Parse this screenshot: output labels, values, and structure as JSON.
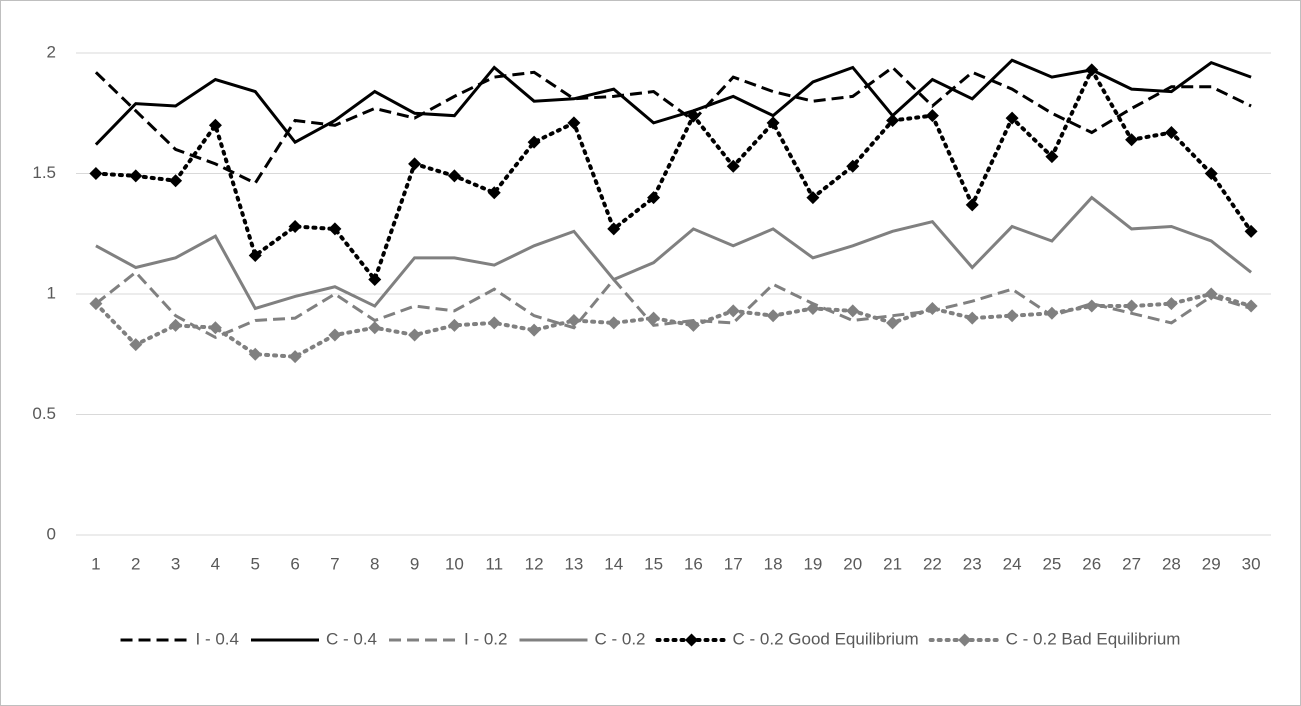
{
  "chart_data": {
    "type": "line",
    "categories": [
      "1",
      "2",
      "3",
      "4",
      "5",
      "6",
      "7",
      "8",
      "9",
      "10",
      "11",
      "12",
      "13",
      "14",
      "15",
      "16",
      "17",
      "18",
      "19",
      "20",
      "21",
      "22",
      "23",
      "24",
      "25",
      "26",
      "27",
      "28",
      "29",
      "30"
    ],
    "ylim": [
      0,
      2
    ],
    "yticks": [
      0,
      0.5,
      1,
      1.5,
      2
    ],
    "grid": true,
    "legend": "bottom",
    "series": [
      {
        "name": "I - 0.4",
        "color": "#000000",
        "dash": "dashed",
        "marker": "none",
        "values": [
          1.92,
          1.76,
          1.6,
          1.54,
          1.46,
          1.72,
          1.7,
          1.77,
          1.73,
          1.82,
          1.9,
          1.92,
          1.81,
          1.82,
          1.84,
          1.72,
          1.9,
          1.84,
          1.8,
          1.82,
          1.94,
          1.78,
          1.92,
          1.85,
          1.75,
          1.67,
          1.77,
          1.86,
          1.86,
          1.78
        ]
      },
      {
        "name": "C - 0.4",
        "color": "#000000",
        "dash": "solid",
        "marker": "none",
        "values": [
          1.62,
          1.79,
          1.78,
          1.89,
          1.84,
          1.63,
          1.72,
          1.84,
          1.75,
          1.74,
          1.94,
          1.8,
          1.81,
          1.85,
          1.71,
          1.76,
          1.82,
          1.74,
          1.88,
          1.94,
          1.74,
          1.89,
          1.81,
          1.97,
          1.9,
          1.93,
          1.85,
          1.84,
          1.96,
          1.9
        ]
      },
      {
        "name": "I - 0.2",
        "color": "#808080",
        "dash": "dashed",
        "marker": "none",
        "values": [
          0.96,
          1.09,
          0.91,
          0.82,
          0.89,
          0.9,
          1.0,
          0.89,
          0.95,
          0.93,
          1.02,
          0.91,
          0.86,
          1.06,
          0.87,
          0.89,
          0.88,
          1.04,
          0.96,
          0.89,
          0.91,
          0.93,
          0.97,
          1.02,
          0.91,
          0.96,
          0.92,
          0.88,
          0.99,
          0.94
        ]
      },
      {
        "name": "C - 0.2",
        "color": "#808080",
        "dash": "solid",
        "marker": "none",
        "values": [
          1.2,
          1.11,
          1.15,
          1.24,
          0.94,
          0.99,
          1.03,
          0.95,
          1.15,
          1.15,
          1.12,
          1.2,
          1.26,
          1.06,
          1.13,
          1.27,
          1.2,
          1.27,
          1.15,
          1.2,
          1.26,
          1.3,
          1.11,
          1.28,
          1.22,
          1.4,
          1.27,
          1.28,
          1.22,
          1.09
        ]
      },
      {
        "name": "C - 0.2 Good Equilibrium",
        "color": "#000000",
        "dash": "dotted",
        "marker": "diamond",
        "values": [
          1.5,
          1.49,
          1.47,
          1.7,
          1.16,
          1.28,
          1.27,
          1.06,
          1.54,
          1.49,
          1.42,
          1.63,
          1.71,
          1.27,
          1.4,
          1.74,
          1.53,
          1.71,
          1.4,
          1.53,
          1.72,
          1.74,
          1.37,
          1.73,
          1.57,
          1.93,
          1.64,
          1.67,
          1.5,
          1.26
        ]
      },
      {
        "name": "C - 0.2 Bad Equilibrium",
        "color": "#808080",
        "dash": "dotted",
        "marker": "diamond",
        "values": [
          0.96,
          0.79,
          0.87,
          0.86,
          0.75,
          0.74,
          0.83,
          0.86,
          0.83,
          0.87,
          0.88,
          0.85,
          0.89,
          0.88,
          0.9,
          0.87,
          0.93,
          0.91,
          0.94,
          0.93,
          0.88,
          0.94,
          0.9,
          0.91,
          0.92,
          0.95,
          0.95,
          0.96,
          1.0,
          0.95
        ]
      }
    ]
  }
}
